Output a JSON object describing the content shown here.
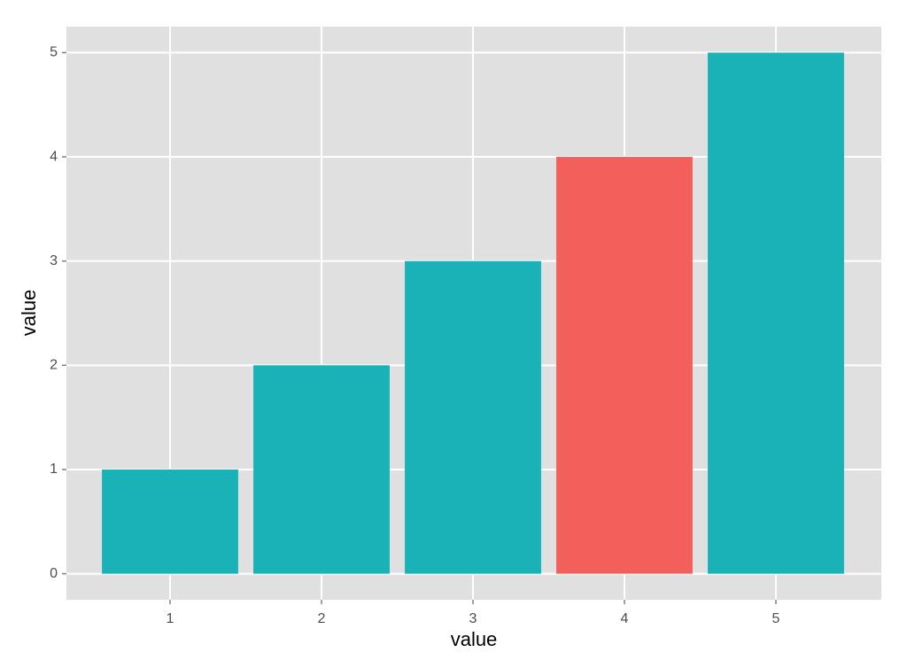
{
  "chart_data": {
    "type": "bar",
    "x_label": "value",
    "y_label": "value",
    "categories": [
      "1",
      "2",
      "3",
      "4",
      "5"
    ],
    "values": [
      1,
      2,
      3,
      4,
      5
    ],
    "colors": [
      "#19b3b7",
      "#19b3b7",
      "#19b3b7",
      "#f35f5a",
      "#19b3b7"
    ],
    "ylim": [
      -0.25,
      5.25
    ],
    "yticks": [
      0,
      1,
      2,
      3,
      4,
      5
    ],
    "grid": true
  }
}
